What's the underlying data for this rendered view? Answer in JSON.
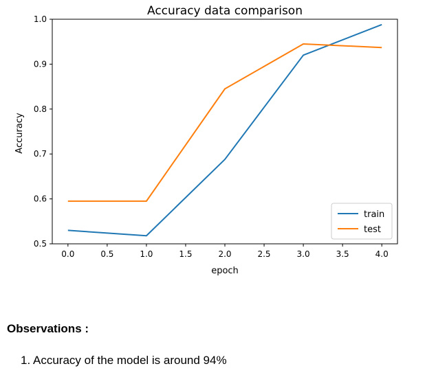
{
  "chart_data": {
    "type": "line",
    "title": "Accuracy data comparison",
    "xlabel": "epoch",
    "ylabel": "Accuracy",
    "xlim": [
      -0.2,
      4.2
    ],
    "ylim": [
      0.5,
      1.0
    ],
    "xticks": [
      0.0,
      0.5,
      1.0,
      1.5,
      2.0,
      2.5,
      3.0,
      3.5,
      4.0
    ],
    "yticks": [
      0.5,
      0.6,
      0.7,
      0.8,
      0.9,
      1.0
    ],
    "xtick_labels": [
      "0.0",
      "0.5",
      "1.0",
      "1.5",
      "2.0",
      "2.5",
      "3.0",
      "3.5",
      "4.0"
    ],
    "ytick_labels": [
      "0.5",
      "0.6",
      "0.7",
      "0.8",
      "0.9",
      "1.0"
    ],
    "x": [
      0,
      1,
      2,
      3,
      4
    ],
    "series": [
      {
        "name": "train",
        "color": "#1f77b4",
        "values": [
          0.53,
          0.518,
          0.688,
          0.92,
          0.988
        ]
      },
      {
        "name": "test",
        "color": "#ff7f0e",
        "values": [
          0.595,
          0.595,
          0.845,
          0.945,
          0.937
        ]
      }
    ],
    "grid": false,
    "legend_position": "lower-right"
  },
  "observations": {
    "heading": "Observations :",
    "items": [
      {
        "marker": "1.",
        "text": "Accuracy of the model is around 94%"
      }
    ]
  }
}
